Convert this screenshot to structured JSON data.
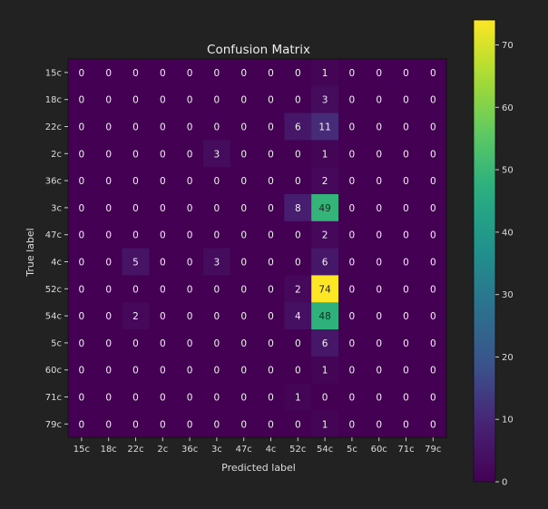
{
  "chart_data": {
    "type": "heatmap",
    "title": "Confusion Matrix",
    "xlabel": "Predicted label",
    "ylabel": "True label",
    "labels": [
      "15c",
      "18c",
      "22c",
      "2c",
      "36c",
      "3c",
      "47c",
      "4c",
      "52c",
      "54c",
      "5c",
      "60c",
      "71c",
      "79c"
    ],
    "matrix": [
      [
        0,
        0,
        0,
        0,
        0,
        0,
        0,
        0,
        0,
        1,
        0,
        0,
        0,
        0
      ],
      [
        0,
        0,
        0,
        0,
        0,
        0,
        0,
        0,
        0,
        3,
        0,
        0,
        0,
        0
      ],
      [
        0,
        0,
        0,
        0,
        0,
        0,
        0,
        0,
        6,
        11,
        0,
        0,
        0,
        0
      ],
      [
        0,
        0,
        0,
        0,
        0,
        3,
        0,
        0,
        0,
        1,
        0,
        0,
        0,
        0
      ],
      [
        0,
        0,
        0,
        0,
        0,
        0,
        0,
        0,
        0,
        2,
        0,
        0,
        0,
        0
      ],
      [
        0,
        0,
        0,
        0,
        0,
        0,
        0,
        0,
        8,
        49,
        0,
        0,
        0,
        0
      ],
      [
        0,
        0,
        0,
        0,
        0,
        0,
        0,
        0,
        0,
        2,
        0,
        0,
        0,
        0
      ],
      [
        0,
        0,
        5,
        0,
        0,
        3,
        0,
        0,
        0,
        6,
        0,
        0,
        0,
        0
      ],
      [
        0,
        0,
        0,
        0,
        0,
        0,
        0,
        0,
        2,
        74,
        0,
        0,
        0,
        0
      ],
      [
        0,
        0,
        2,
        0,
        0,
        0,
        0,
        0,
        4,
        48,
        0,
        0,
        0,
        0
      ],
      [
        0,
        0,
        0,
        0,
        0,
        0,
        0,
        0,
        0,
        6,
        0,
        0,
        0,
        0
      ],
      [
        0,
        0,
        0,
        0,
        0,
        0,
        0,
        0,
        0,
        1,
        0,
        0,
        0,
        0
      ],
      [
        0,
        0,
        0,
        0,
        0,
        0,
        0,
        0,
        1,
        0,
        0,
        0,
        0,
        0
      ],
      [
        0,
        0,
        0,
        0,
        0,
        0,
        0,
        0,
        0,
        1,
        0,
        0,
        0,
        0
      ]
    ],
    "colorbar": {
      "colormap": "viridis",
      "range": [
        0,
        74
      ],
      "ticks": [
        "0",
        "10",
        "20",
        "30",
        "40",
        "50",
        "60",
        "70"
      ]
    },
    "grid": false
  }
}
